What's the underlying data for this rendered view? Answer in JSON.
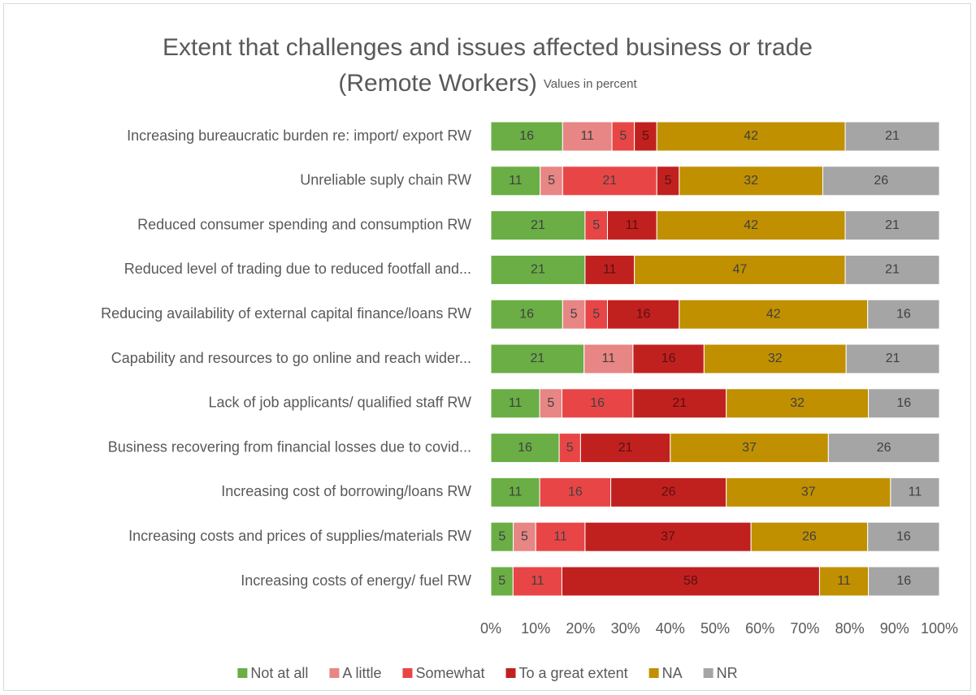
{
  "chart_data": {
    "type": "stacked_bar_100",
    "title": [
      "Extent that challenges and issues affected business or trade",
      "(Remote Workers)"
    ],
    "subtitle": "Values in percent",
    "categories": [
      "Increasing bureaucratic burden re: import/ export RW",
      "Unreliable suply chain RW",
      "Reduced consumer spending and consumption RW",
      "Reduced level of trading due to reduced footfall and...",
      "Reducing availability of external capital finance/loans RW",
      "Capability and resources to go online and reach wider...",
      "Lack of job applicants/ qualified staff RW",
      "Business recovering from financial losses due to covid...",
      "Increasing cost of borrowing/loans RW",
      "Increasing costs and prices of supplies/materials RW",
      "Increasing costs of energy/ fuel RW"
    ],
    "series": [
      {
        "name": "Not at all",
        "color": "#6aae45",
        "values": [
          16,
          11,
          21,
          21,
          16,
          21,
          11,
          16,
          11,
          5,
          5
        ]
      },
      {
        "name": "A little",
        "color": "#e88585",
        "values": [
          11,
          5,
          null,
          null,
          5,
          11,
          5,
          null,
          null,
          5,
          null
        ]
      },
      {
        "name": "Somewhat",
        "color": "#e84646",
        "values": [
          5,
          21,
          5,
          null,
          5,
          null,
          16,
          5,
          16,
          11,
          11
        ]
      },
      {
        "name": "To a great extent",
        "color": "#c0211f",
        "values": [
          5,
          5,
          11,
          11,
          16,
          16,
          21,
          21,
          26,
          37,
          58
        ]
      },
      {
        "name": "NA",
        "color": "#c09000",
        "values": [
          42,
          32,
          42,
          47,
          42,
          32,
          32,
          37,
          37,
          26,
          11
        ]
      },
      {
        "name": "NR",
        "color": "#a5a5a5",
        "values": [
          21,
          26,
          21,
          21,
          16,
          21,
          16,
          26,
          11,
          16,
          16
        ]
      }
    ],
    "xlim": [
      0,
      100
    ],
    "xticks": [
      {
        "value": 0,
        "label": "0%"
      },
      {
        "value": 10,
        "label": "10%"
      },
      {
        "value": 20,
        "label": "20%"
      },
      {
        "value": 30,
        "label": "30%"
      },
      {
        "value": 40,
        "label": "40%"
      },
      {
        "value": 50,
        "label": "50%"
      },
      {
        "value": 60,
        "label": "60%"
      },
      {
        "value": 70,
        "label": "70%"
      },
      {
        "value": 80,
        "label": "80%"
      },
      {
        "value": 90,
        "label": "90%"
      },
      {
        "value": 100,
        "label": "100%"
      }
    ],
    "legend": "bottom"
  }
}
